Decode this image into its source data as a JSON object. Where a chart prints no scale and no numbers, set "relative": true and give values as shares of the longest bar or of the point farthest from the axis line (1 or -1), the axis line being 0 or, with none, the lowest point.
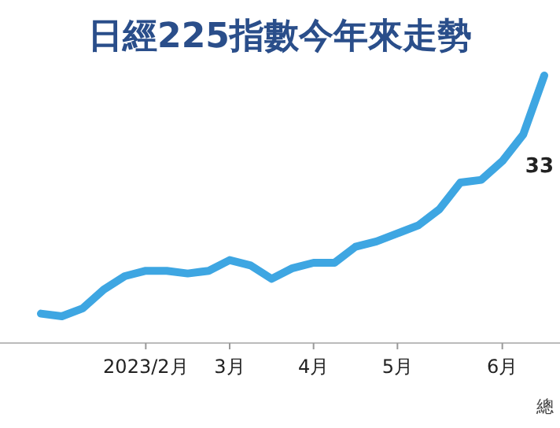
{
  "chart_data": {
    "type": "line",
    "title": "日經225指數今年來走勢",
    "relative": true,
    "categories": [
      null,
      null,
      null,
      null,
      null,
      "2023/2月",
      null,
      null,
      null,
      "3月",
      null,
      null,
      null,
      "4月",
      null,
      null,
      null,
      "5月",
      null,
      null,
      null,
      null,
      "6月",
      null,
      null
    ],
    "series": [
      {
        "color": "#3ea6e2",
        "values": [
          0.11,
          0.1,
          0.13,
          0.2,
          0.25,
          0.27,
          0.27,
          0.26,
          0.27,
          0.31,
          0.29,
          0.24,
          0.28,
          0.3,
          0.3,
          0.36,
          0.38,
          0.41,
          0.44,
          0.5,
          0.6,
          0.61,
          0.68,
          0.78,
          1
        ]
      }
    ],
    "annotations": [
      "33",
      "總"
    ]
  }
}
